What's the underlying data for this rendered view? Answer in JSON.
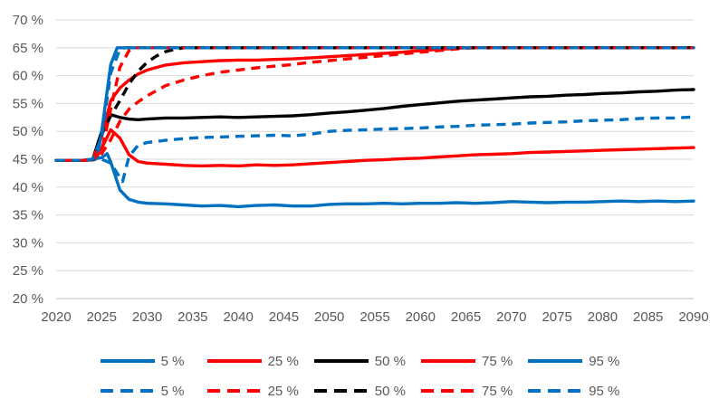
{
  "chart_data": {
    "type": "line",
    "title": "",
    "xlabel": "",
    "ylabel": "",
    "grid": true,
    "legend_position": "bottom",
    "background": "#ffffff",
    "colors": {
      "blue": "#0070C0",
      "red": "#FF0000",
      "black": "#000000",
      "tick_text": "#595959",
      "gridline": "#D9D9D9",
      "axis_line": "#BFBFBF"
    },
    "x_axis": {
      "range": [
        2020,
        2090
      ],
      "tick_values": [
        2020,
        2025,
        2030,
        2035,
        2040,
        2045,
        2050,
        2055,
        2060,
        2065,
        2070,
        2075,
        2080,
        2085,
        2090
      ],
      "tick_labels": [
        "2020",
        "2025",
        "2030",
        "2035",
        "2040",
        "2045",
        "2050",
        "2055",
        "2060",
        "2065",
        "2070",
        "2075",
        "2080",
        "2085",
        "2090"
      ]
    },
    "y_axis": {
      "range": [
        20,
        70
      ],
      "unit": "%",
      "tick_values": [
        70,
        65,
        60,
        55,
        50,
        45,
        40,
        35,
        30,
        25,
        20
      ],
      "tick_labels": [
        "70 %",
        "65 %",
        "60 %",
        "55 %",
        "50 %",
        "45 %",
        "40 %",
        "35 %",
        "30 %",
        "25 %",
        "20 %"
      ]
    },
    "series": [
      {
        "name": "solid-5",
        "label": "5 %",
        "style": "solid",
        "color": "#0070C0",
        "points": [
          [
            2020,
            44.8
          ],
          [
            2023,
            44.8
          ],
          [
            2024,
            45.0
          ],
          [
            2025,
            45.3
          ],
          [
            2025.6,
            46.0
          ],
          [
            2026,
            44.5
          ],
          [
            2027,
            39.5
          ],
          [
            2028,
            37.8
          ],
          [
            2029,
            37.3
          ],
          [
            2030,
            37.1
          ],
          [
            2032,
            37.0
          ],
          [
            2034,
            36.8
          ],
          [
            2036,
            36.6
          ],
          [
            2038,
            36.7
          ],
          [
            2040,
            36.5
          ],
          [
            2042,
            36.7
          ],
          [
            2044,
            36.8
          ],
          [
            2046,
            36.6
          ],
          [
            2048,
            36.6
          ],
          [
            2050,
            36.9
          ],
          [
            2052,
            37.0
          ],
          [
            2054,
            37.0
          ],
          [
            2056,
            37.1
          ],
          [
            2058,
            37.0
          ],
          [
            2060,
            37.1
          ],
          [
            2062,
            37.1
          ],
          [
            2064,
            37.2
          ],
          [
            2066,
            37.1
          ],
          [
            2068,
            37.2
          ],
          [
            2070,
            37.4
          ],
          [
            2072,
            37.3
          ],
          [
            2074,
            37.2
          ],
          [
            2076,
            37.3
          ],
          [
            2078,
            37.3
          ],
          [
            2080,
            37.4
          ],
          [
            2082,
            37.5
          ],
          [
            2084,
            37.4
          ],
          [
            2086,
            37.5
          ],
          [
            2088,
            37.4
          ],
          [
            2090,
            37.5
          ]
        ]
      },
      {
        "name": "solid-25",
        "label": "25 %",
        "style": "solid",
        "color": "#FF0000",
        "points": [
          [
            2020,
            44.8
          ],
          [
            2023,
            44.8
          ],
          [
            2024,
            44.9
          ],
          [
            2025,
            47.0
          ],
          [
            2026,
            50.3
          ],
          [
            2027,
            48.8
          ],
          [
            2028,
            45.8
          ],
          [
            2029,
            44.6
          ],
          [
            2030,
            44.3
          ],
          [
            2032,
            44.1
          ],
          [
            2034,
            43.9
          ],
          [
            2036,
            43.8
          ],
          [
            2038,
            43.9
          ],
          [
            2040,
            43.8
          ],
          [
            2042,
            44.0
          ],
          [
            2044,
            43.9
          ],
          [
            2046,
            44.0
          ],
          [
            2048,
            44.2
          ],
          [
            2050,
            44.4
          ],
          [
            2052,
            44.6
          ],
          [
            2054,
            44.8
          ],
          [
            2056,
            44.9
          ],
          [
            2058,
            45.1
          ],
          [
            2060,
            45.2
          ],
          [
            2062,
            45.4
          ],
          [
            2064,
            45.6
          ],
          [
            2066,
            45.8
          ],
          [
            2068,
            45.9
          ],
          [
            2070,
            46.0
          ],
          [
            2072,
            46.2
          ],
          [
            2074,
            46.3
          ],
          [
            2076,
            46.4
          ],
          [
            2078,
            46.5
          ],
          [
            2080,
            46.6
          ],
          [
            2082,
            46.7
          ],
          [
            2084,
            46.8
          ],
          [
            2086,
            46.9
          ],
          [
            2088,
            47.0
          ],
          [
            2090,
            47.1
          ]
        ]
      },
      {
        "name": "solid-50",
        "label": "50 %",
        "style": "solid",
        "color": "#000000",
        "points": [
          [
            2020,
            44.8
          ],
          [
            2023,
            44.8
          ],
          [
            2024,
            44.9
          ],
          [
            2025,
            50.0
          ],
          [
            2026,
            53.0
          ],
          [
            2027,
            52.5
          ],
          [
            2028,
            52.2
          ],
          [
            2029,
            52.1
          ],
          [
            2030,
            52.2
          ],
          [
            2032,
            52.4
          ],
          [
            2034,
            52.4
          ],
          [
            2036,
            52.5
          ],
          [
            2038,
            52.6
          ],
          [
            2040,
            52.5
          ],
          [
            2042,
            52.6
          ],
          [
            2044,
            52.7
          ],
          [
            2046,
            52.8
          ],
          [
            2048,
            53.0
          ],
          [
            2050,
            53.3
          ],
          [
            2052,
            53.5
          ],
          [
            2054,
            53.8
          ],
          [
            2056,
            54.1
          ],
          [
            2058,
            54.5
          ],
          [
            2060,
            54.8
          ],
          [
            2062,
            55.1
          ],
          [
            2064,
            55.4
          ],
          [
            2066,
            55.6
          ],
          [
            2068,
            55.8
          ],
          [
            2070,
            56.0
          ],
          [
            2072,
            56.2
          ],
          [
            2074,
            56.3
          ],
          [
            2076,
            56.5
          ],
          [
            2078,
            56.6
          ],
          [
            2080,
            56.8
          ],
          [
            2082,
            56.9
          ],
          [
            2084,
            57.1
          ],
          [
            2086,
            57.2
          ],
          [
            2088,
            57.4
          ],
          [
            2090,
            57.5
          ]
        ]
      },
      {
        "name": "solid-75",
        "label": "75 %",
        "style": "solid",
        "color": "#FF0000",
        "points": [
          [
            2020,
            44.8
          ],
          [
            2023,
            44.8
          ],
          [
            2024,
            44.9
          ],
          [
            2025,
            49.0
          ],
          [
            2026,
            55.5
          ],
          [
            2027,
            57.8
          ],
          [
            2028,
            59.2
          ],
          [
            2029,
            60.3
          ],
          [
            2030,
            61.0
          ],
          [
            2032,
            61.9
          ],
          [
            2034,
            62.3
          ],
          [
            2036,
            62.5
          ],
          [
            2038,
            62.7
          ],
          [
            2040,
            62.8
          ],
          [
            2042,
            62.8
          ],
          [
            2044,
            62.9
          ],
          [
            2046,
            63.0
          ],
          [
            2048,
            63.2
          ],
          [
            2050,
            63.4
          ],
          [
            2052,
            63.6
          ],
          [
            2054,
            63.8
          ],
          [
            2056,
            64.0
          ],
          [
            2058,
            64.2
          ],
          [
            2060,
            64.5
          ],
          [
            2062,
            64.7
          ],
          [
            2064,
            64.9
          ],
          [
            2065,
            65.0
          ],
          [
            2090,
            65.0
          ]
        ]
      },
      {
        "name": "solid-95",
        "label": "95 %",
        "style": "solid",
        "color": "#0070C0",
        "points": [
          [
            2020,
            44.8
          ],
          [
            2023,
            44.8
          ],
          [
            2024,
            45.0
          ],
          [
            2024.5,
            45.2
          ],
          [
            2025,
            50.0
          ],
          [
            2026,
            62.0
          ],
          [
            2026.7,
            65.0
          ],
          [
            2090,
            65.0
          ]
        ]
      },
      {
        "name": "dashed-5",
        "label": "5 %",
        "style": "dashed",
        "color": "#0070C0",
        "points": [
          [
            2020,
            44.8
          ],
          [
            2023,
            44.8
          ],
          [
            2024,
            44.9
          ],
          [
            2025,
            45.0
          ],
          [
            2026,
            44.3
          ],
          [
            2026.5,
            43.0
          ],
          [
            2027.3,
            41.0
          ],
          [
            2028,
            45.5
          ],
          [
            2029,
            47.5
          ],
          [
            2030,
            48.0
          ],
          [
            2032,
            48.4
          ],
          [
            2034,
            48.7
          ],
          [
            2036,
            48.9
          ],
          [
            2038,
            49.0
          ],
          [
            2040,
            49.1
          ],
          [
            2042,
            49.2
          ],
          [
            2044,
            49.3
          ],
          [
            2046,
            49.2
          ],
          [
            2048,
            49.5
          ],
          [
            2050,
            50.0
          ],
          [
            2052,
            50.2
          ],
          [
            2054,
            50.3
          ],
          [
            2056,
            50.4
          ],
          [
            2058,
            50.5
          ],
          [
            2060,
            50.6
          ],
          [
            2062,
            50.8
          ],
          [
            2064,
            50.9
          ],
          [
            2066,
            51.1
          ],
          [
            2068,
            51.2
          ],
          [
            2070,
            51.3
          ],
          [
            2072,
            51.5
          ],
          [
            2074,
            51.6
          ],
          [
            2076,
            51.7
          ],
          [
            2078,
            51.9
          ],
          [
            2080,
            52.0
          ],
          [
            2082,
            52.1
          ],
          [
            2084,
            52.3
          ],
          [
            2086,
            52.4
          ],
          [
            2088,
            52.4
          ],
          [
            2090,
            52.6
          ]
        ]
      },
      {
        "name": "dashed-25",
        "label": "25 %",
        "style": "dashed",
        "color": "#FF0000",
        "points": [
          [
            2020,
            44.8
          ],
          [
            2023,
            44.8
          ],
          [
            2024,
            44.9
          ],
          [
            2025,
            46.0
          ],
          [
            2026,
            48.5
          ],
          [
            2027,
            51.8
          ],
          [
            2028,
            54.0
          ],
          [
            2029,
            55.3
          ],
          [
            2030,
            56.4
          ],
          [
            2032,
            58.2
          ],
          [
            2034,
            59.2
          ],
          [
            2036,
            60.0
          ],
          [
            2038,
            60.6
          ],
          [
            2040,
            61.0
          ],
          [
            2042,
            61.4
          ],
          [
            2044,
            61.7
          ],
          [
            2046,
            62.0
          ],
          [
            2048,
            62.4
          ],
          [
            2050,
            62.7
          ],
          [
            2052,
            63.0
          ],
          [
            2054,
            63.3
          ],
          [
            2056,
            63.6
          ],
          [
            2058,
            63.9
          ],
          [
            2060,
            64.2
          ],
          [
            2062,
            64.5
          ],
          [
            2064,
            64.8
          ],
          [
            2066,
            65.0
          ],
          [
            2090,
            65.0
          ]
        ]
      },
      {
        "name": "dashed-50",
        "label": "50 %",
        "style": "dashed",
        "color": "#000000",
        "points": [
          [
            2020,
            44.8
          ],
          [
            2023,
            44.8
          ],
          [
            2024,
            44.9
          ],
          [
            2025,
            49.5
          ],
          [
            2026,
            52.8
          ],
          [
            2027,
            55.5
          ],
          [
            2028,
            58.5
          ],
          [
            2029,
            60.8
          ],
          [
            2030,
            62.4
          ],
          [
            2031,
            63.5
          ],
          [
            2032,
            64.3
          ],
          [
            2033,
            64.7
          ],
          [
            2034,
            65.0
          ],
          [
            2090,
            65.0
          ]
        ]
      },
      {
        "name": "dashed-75",
        "label": "75 %",
        "style": "dashed",
        "color": "#FF0000",
        "points": [
          [
            2020,
            44.8
          ],
          [
            2023,
            44.8
          ],
          [
            2024,
            44.9
          ],
          [
            2025,
            46.5
          ],
          [
            2026,
            54.0
          ],
          [
            2027,
            61.5
          ],
          [
            2028,
            64.5
          ],
          [
            2028.5,
            65.0
          ],
          [
            2090,
            65.0
          ]
        ]
      },
      {
        "name": "dashed-95",
        "label": "95 %",
        "style": "dashed",
        "color": "#0070C0",
        "points": [
          [
            2020,
            44.8
          ],
          [
            2023,
            44.8
          ],
          [
            2024,
            45.0
          ],
          [
            2025,
            49.0
          ],
          [
            2026,
            60.5
          ],
          [
            2027,
            64.7
          ],
          [
            2027.6,
            65.0
          ],
          [
            2090,
            65.0
          ]
        ]
      }
    ],
    "legend_rows": [
      {
        "style": "solid",
        "items": [
          {
            "label": "5 %",
            "color": "#0070C0"
          },
          {
            "label": "25 %",
            "color": "#FF0000"
          },
          {
            "label": "50 %",
            "color": "#000000"
          },
          {
            "label": "75 %",
            "color": "#FF0000"
          },
          {
            "label": "95 %",
            "color": "#0070C0"
          }
        ]
      },
      {
        "style": "dashed",
        "items": [
          {
            "label": "5 %",
            "color": "#0070C0"
          },
          {
            "label": "25 %",
            "color": "#FF0000"
          },
          {
            "label": "50 %",
            "color": "#000000"
          },
          {
            "label": "75 %",
            "color": "#FF0000"
          },
          {
            "label": "95 %",
            "color": "#0070C0"
          }
        ]
      }
    ]
  }
}
